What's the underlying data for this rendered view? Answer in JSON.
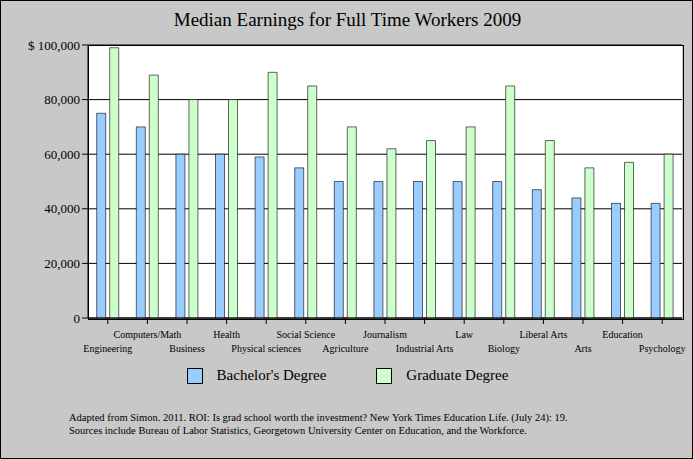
{
  "chart_data": {
    "type": "bar",
    "title": "Median Earnings for Full Time Workers 2009",
    "categories": [
      "Engineering",
      "Computers/Math",
      "Business",
      "Health",
      "Physical sciences",
      "Social Science",
      "Agriculture",
      "Journalism",
      "Industrial Arts",
      "Law",
      "Biology",
      "Liberal Arts",
      "Arts",
      "Education",
      "Psychology"
    ],
    "series": [
      {
        "name": "Bachelor's Degree",
        "color": "#99ccff",
        "values": [
          75000,
          70000,
          60000,
          60000,
          59000,
          55000,
          50000,
          50000,
          50000,
          50000,
          50000,
          47000,
          44000,
          42000,
          42000
        ]
      },
      {
        "name": "Graduate Degree",
        "color": "#ccffcc",
        "values": [
          99000,
          89000,
          80000,
          80000,
          90000,
          85000,
          70000,
          62000,
          65000,
          70000,
          85000,
          65000,
          55000,
          57000,
          60000
        ]
      }
    ],
    "ylim": [
      0,
      100000
    ],
    "yticks": [
      0,
      {
        "value": 20000,
        "label": "20,000"
      },
      {
        "value": 40000,
        "label": "40,000"
      },
      {
        "value": 60000,
        "label": "60,000"
      },
      {
        "value": 80000,
        "label": "80,000"
      },
      {
        "value": 100000,
        "label": "$ 100,000"
      }
    ],
    "grid": true,
    "legend": "bottom",
    "annotations": [
      "Adapted from Simon. 2011.  ROI: Is grad school worth the investment? New York Times Education Life. (July 24): 19.",
      "Sources include Bureau of Labor Statistics, Georgetown University Center on Education, and the Workforce."
    ]
  }
}
